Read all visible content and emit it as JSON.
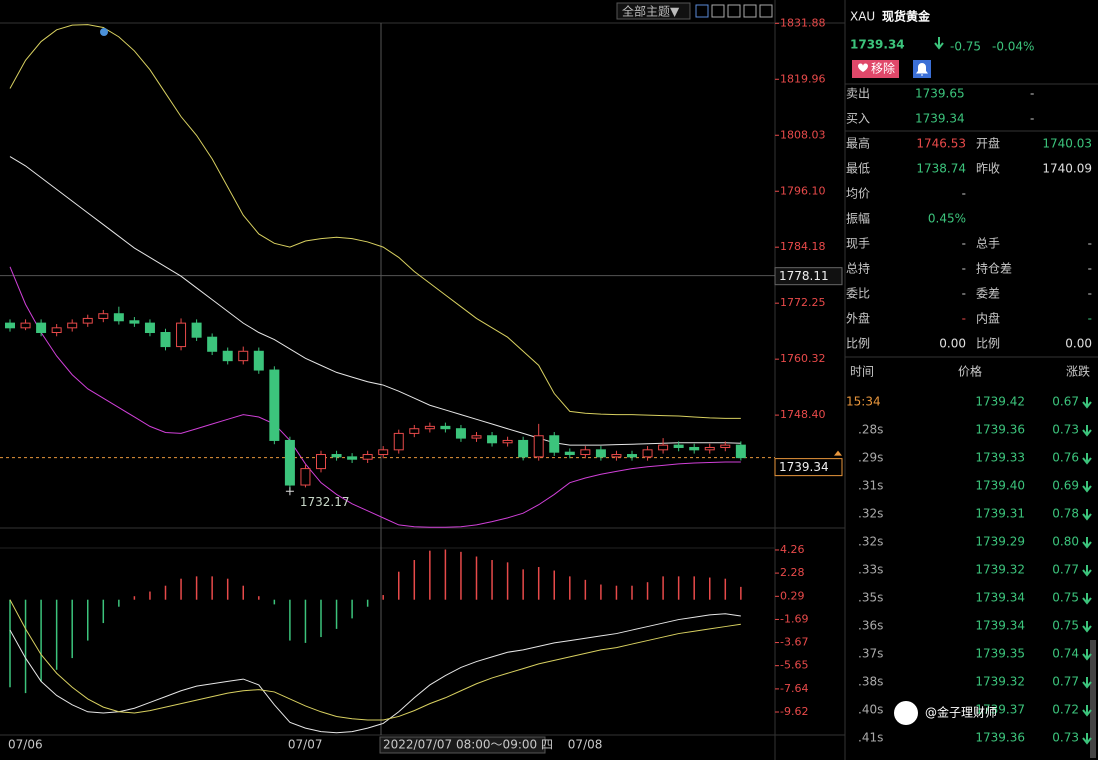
{
  "toolbar": {
    "theme_button": "全部主题▼"
  },
  "chart_data": [
    {
      "type": "candlestick",
      "up_color": "#e84a4a",
      "down_color": "#3cc47c",
      "categories": [
        "07/06",
        null,
        null,
        null,
        null,
        null,
        null,
        null,
        null,
        null,
        null,
        null,
        null,
        null,
        null,
        null,
        null,
        null,
        "07/07",
        null,
        null,
        null,
        null,
        null,
        null,
        null,
        null,
        null,
        null,
        null,
        null,
        null,
        null,
        null,
        null,
        null,
        "07/08",
        null,
        null,
        null,
        null,
        null,
        null,
        null,
        null,
        null,
        null,
        null
      ],
      "open": [
        1768,
        1767,
        1768,
        1766,
        1767,
        1768,
        1769,
        1770,
        1768.5,
        1768,
        1766,
        1763,
        1768,
        1765,
        1762,
        1760,
        1762,
        1758,
        1743,
        1733.5,
        1737,
        1740,
        1739.5,
        1739,
        1740,
        1741,
        1744.5,
        1745.5,
        1746,
        1745.5,
        1743.5,
        1744,
        1742.5,
        1743,
        1739.5,
        1744,
        1740.5,
        1740,
        1741,
        1739.5,
        1740,
        1739.5,
        1741,
        1742,
        1741.5,
        1741,
        1741.5,
        1742
      ],
      "high": [
        1768.8,
        1768.8,
        1768.8,
        1767.8,
        1768.8,
        1769.8,
        1770.8,
        1771.5,
        1769.3,
        1768.8,
        1766.8,
        1769,
        1768.8,
        1765.8,
        1762.8,
        1763,
        1762.8,
        1758.8,
        1743.8,
        1737.8,
        1740.8,
        1740.8,
        1740.3,
        1740.8,
        1741.8,
        1745.3,
        1746.3,
        1746.8,
        1746.8,
        1746.3,
        1744.8,
        1744.8,
        1743.8,
        1743.8,
        1746.53,
        1744.8,
        1741.3,
        1741.8,
        1741.8,
        1740.8,
        1740.8,
        1741.8,
        1743.5,
        1742.8,
        1742.3,
        1742.3,
        1742.8,
        1742.8
      ],
      "low": [
        1766.2,
        1766.5,
        1765.2,
        1765.2,
        1766.2,
        1767.2,
        1768.2,
        1767.7,
        1767.2,
        1765.2,
        1762.2,
        1762.2,
        1764.2,
        1761.2,
        1759.2,
        1759.2,
        1757.2,
        1742.2,
        1732.17,
        1733,
        1736.2,
        1738.7,
        1738.2,
        1738.2,
        1739.2,
        1740.2,
        1743.7,
        1744.7,
        1744.7,
        1742.7,
        1742.7,
        1741.7,
        1741.7,
        1738.74,
        1738.7,
        1739.7,
        1739.2,
        1739.2,
        1738.7,
        1738.7,
        1738.7,
        1738.7,
        1740.2,
        1740.7,
        1740.2,
        1740.2,
        1740.7,
        1738.74
      ],
      "close": [
        1767,
        1768,
        1766,
        1767,
        1768,
        1769,
        1770,
        1768.5,
        1768,
        1766,
        1763,
        1768,
        1765,
        1762,
        1760,
        1762,
        1758,
        1743,
        1733.5,
        1737,
        1740,
        1739.5,
        1739,
        1740,
        1741,
        1744.5,
        1745.5,
        1746,
        1745.5,
        1743.5,
        1744,
        1742.5,
        1743,
        1739.5,
        1744,
        1740.5,
        1740,
        1741,
        1739.5,
        1740,
        1739.5,
        1741,
        1742,
        1741.5,
        1741,
        1741.5,
        1742,
        1739.34
      ],
      "overlays": [
        {
          "color": "#d8d060",
          "values": [
            1818,
            1824,
            1828,
            1830.5,
            1831.5,
            1831.6,
            1831,
            1829,
            1826,
            1822,
            1817,
            1812,
            1808,
            1803,
            1797,
            1791,
            1787,
            1785,
            1784.2,
            1785.5,
            1786,
            1786.3,
            1786,
            1785.3,
            1784.2,
            1782,
            1779,
            1776.5,
            1774,
            1771.5,
            1769,
            1767,
            1765,
            1762,
            1759,
            1753,
            1749.2,
            1748.8,
            1748.6,
            1748.5,
            1748.5,
            1748.4,
            1748.3,
            1748.2,
            1748,
            1747.8,
            1747.7,
            1747.7
          ]
        },
        {
          "color": "#e6e6e6",
          "values": [
            1803.5,
            1801.5,
            1799,
            1796.5,
            1794,
            1791.5,
            1789,
            1786.5,
            1784,
            1782,
            1780,
            1778,
            1775.5,
            1773,
            1770.5,
            1768,
            1766,
            1764.5,
            1762.5,
            1760.5,
            1759,
            1757.5,
            1756.5,
            1755.5,
            1754.8,
            1753.5,
            1752,
            1750.5,
            1749.5,
            1748.5,
            1747.5,
            1746.5,
            1745.5,
            1744.5,
            1743.5,
            1742.5,
            1742,
            1742,
            1742,
            1742.1,
            1742.2,
            1742.3,
            1742.4,
            1742.5,
            1742.5,
            1742.5,
            1742.5,
            1742.4
          ]
        },
        {
          "color": "#d040d8",
          "values": [
            1780,
            1772,
            1766,
            1761,
            1757,
            1754,
            1752,
            1750,
            1748,
            1746,
            1744.7,
            1744.5,
            1745.5,
            1746.5,
            1747.5,
            1748.5,
            1748,
            1746.5,
            1743,
            1738,
            1734,
            1731.5,
            1729.5,
            1728,
            1726.5,
            1725,
            1724.6,
            1724.5,
            1724.5,
            1724.6,
            1725,
            1725.7,
            1726.5,
            1727.5,
            1729.3,
            1731.5,
            1734,
            1735,
            1735.8,
            1736.4,
            1737,
            1737.4,
            1737.7,
            1738,
            1738.2,
            1738.3,
            1738.4,
            1738.4
          ]
        }
      ],
      "ylim": [
        1722,
        1836
      ],
      "yticks": [
        1831.88,
        1819.96,
        1808.03,
        {
          "value": 1796.1,
          "label": "1796.10"
        },
        1784.18,
        1772.25,
        1760.32,
        {
          "value": 1748.4,
          "label": "1748.40"
        }
      ],
      "crosshair": {
        "value": 1778.11,
        "label": "1778.11",
        "time": "2022/07/07 08:00～09:00 四"
      },
      "last_price": {
        "value": 1739.34,
        "label": "1739.34",
        "color": "#e8963c"
      },
      "low_annotation": {
        "value": 1732.17,
        "label": "1732.17"
      }
    },
    {
      "type": "bar",
      "up_color": "#e84a4a",
      "down_color": "#3cc47c",
      "values": [
        -7.5,
        -8,
        -7,
        -6,
        -5,
        -3.5,
        -2,
        -0.6,
        0.3,
        0.7,
        1.2,
        1.8,
        2,
        2,
        1.8,
        1.2,
        0.3,
        -0.4,
        -3.5,
        -3.7,
        -3.2,
        -2.5,
        -1.6,
        -0.6,
        0.4,
        2.4,
        3.4,
        4.2,
        4.3,
        4.1,
        3.7,
        3.4,
        3.2,
        2.6,
        2.8,
        2.5,
        2,
        1.7,
        1.3,
        1.2,
        1.2,
        1.5,
        2,
        2,
        2,
        1.9,
        1.8,
        1.1
      ],
      "lines": [
        {
          "color": "#e6e6e6",
          "values": [
            -2.6,
            -5,
            -7,
            -8.2,
            -9,
            -9.6,
            -9.7,
            -9.6,
            -9.3,
            -8.8,
            -8.3,
            -7.8,
            -7.4,
            -7.2,
            -7,
            -6.8,
            -7.3,
            -9,
            -10.5,
            -11,
            -11.3,
            -11.4,
            -11.3,
            -11,
            -10.6,
            -9.6,
            -8.4,
            -7.3,
            -6.5,
            -5.8,
            -5.3,
            -4.9,
            -4.5,
            -4.3,
            -4,
            -3.7,
            -3.5,
            -3.3,
            -3.1,
            -2.9,
            -2.6,
            -2.3,
            -2,
            -1.7,
            -1.5,
            -1.3,
            -1.2,
            -1.4
          ]
        },
        {
          "color": "#d8d060",
          "values": [
            0,
            -2.5,
            -4.7,
            -6.3,
            -7.5,
            -8.5,
            -9.2,
            -9.6,
            -9.7,
            -9.5,
            -9.2,
            -8.9,
            -8.6,
            -8.3,
            -8,
            -7.8,
            -7.7,
            -7.9,
            -8.5,
            -9.1,
            -9.6,
            -10,
            -10.2,
            -10.3,
            -10.3,
            -10,
            -9.5,
            -8.9,
            -8.4,
            -7.8,
            -7.2,
            -6.7,
            -6.3,
            -5.9,
            -5.5,
            -5.2,
            -4.9,
            -4.6,
            -4.3,
            -4.1,
            -3.8,
            -3.5,
            -3.2,
            -2.9,
            -2.7,
            -2.5,
            -2.3,
            -2.1
          ]
        }
      ],
      "ylim": [
        -12,
        5.5
      ],
      "yticks": [
        4.26,
        2.28,
        0.29,
        -1.69,
        -3.67,
        -5.65,
        -7.64,
        -9.62
      ]
    }
  ],
  "quote": {
    "symbol": "XAU",
    "name": "现货黄金",
    "price": "1739.34",
    "change": "-0.75",
    "change_pct": "-0.04%",
    "remove_button": "移除",
    "fields": [
      [
        "卖出",
        "1739.65",
        "-"
      ],
      [
        "买入",
        "1739.34",
        "-"
      ],
      [
        "最高",
        "1746.53",
        "开盘",
        "1740.03"
      ],
      [
        "最低",
        "1738.74",
        "昨收",
        "1740.09"
      ],
      [
        "均价",
        "-"
      ],
      [
        "振幅",
        "0.45%"
      ],
      [
        "现手",
        "-",
        "总手",
        "-"
      ],
      [
        "总持",
        "-",
        "持仓差",
        "-"
      ],
      [
        "委比",
        "-",
        "委差",
        "-"
      ],
      [
        "外盘",
        "-",
        "内盘",
        "-"
      ],
      [
        "比例",
        "0.00",
        "比例",
        "0.00"
      ]
    ]
  },
  "trades": {
    "headers": [
      "时间",
      "价格",
      "涨跌"
    ],
    "rows": [
      [
        "15:34",
        "1739.42",
        "0.67"
      ],
      [
        ".28s",
        "1739.36",
        "0.73"
      ],
      [
        ".29s",
        "1739.33",
        "0.76"
      ],
      [
        ".31s",
        "1739.40",
        "0.69"
      ],
      [
        ".32s",
        "1739.31",
        "0.78"
      ],
      [
        ".32s",
        "1739.29",
        "0.80"
      ],
      [
        ".33s",
        "1739.32",
        "0.77"
      ],
      [
        ".35s",
        "1739.34",
        "0.75"
      ],
      [
        ".36s",
        "1739.34",
        "0.75"
      ],
      [
        ".37s",
        "1739.35",
        "0.74"
      ],
      [
        ".38s",
        "1739.32",
        "0.77"
      ],
      [
        ".40s",
        "1739.37",
        "0.72"
      ],
      [
        ".41s",
        "1739.36",
        "0.73"
      ]
    ]
  },
  "watermark": "@金子理财师"
}
